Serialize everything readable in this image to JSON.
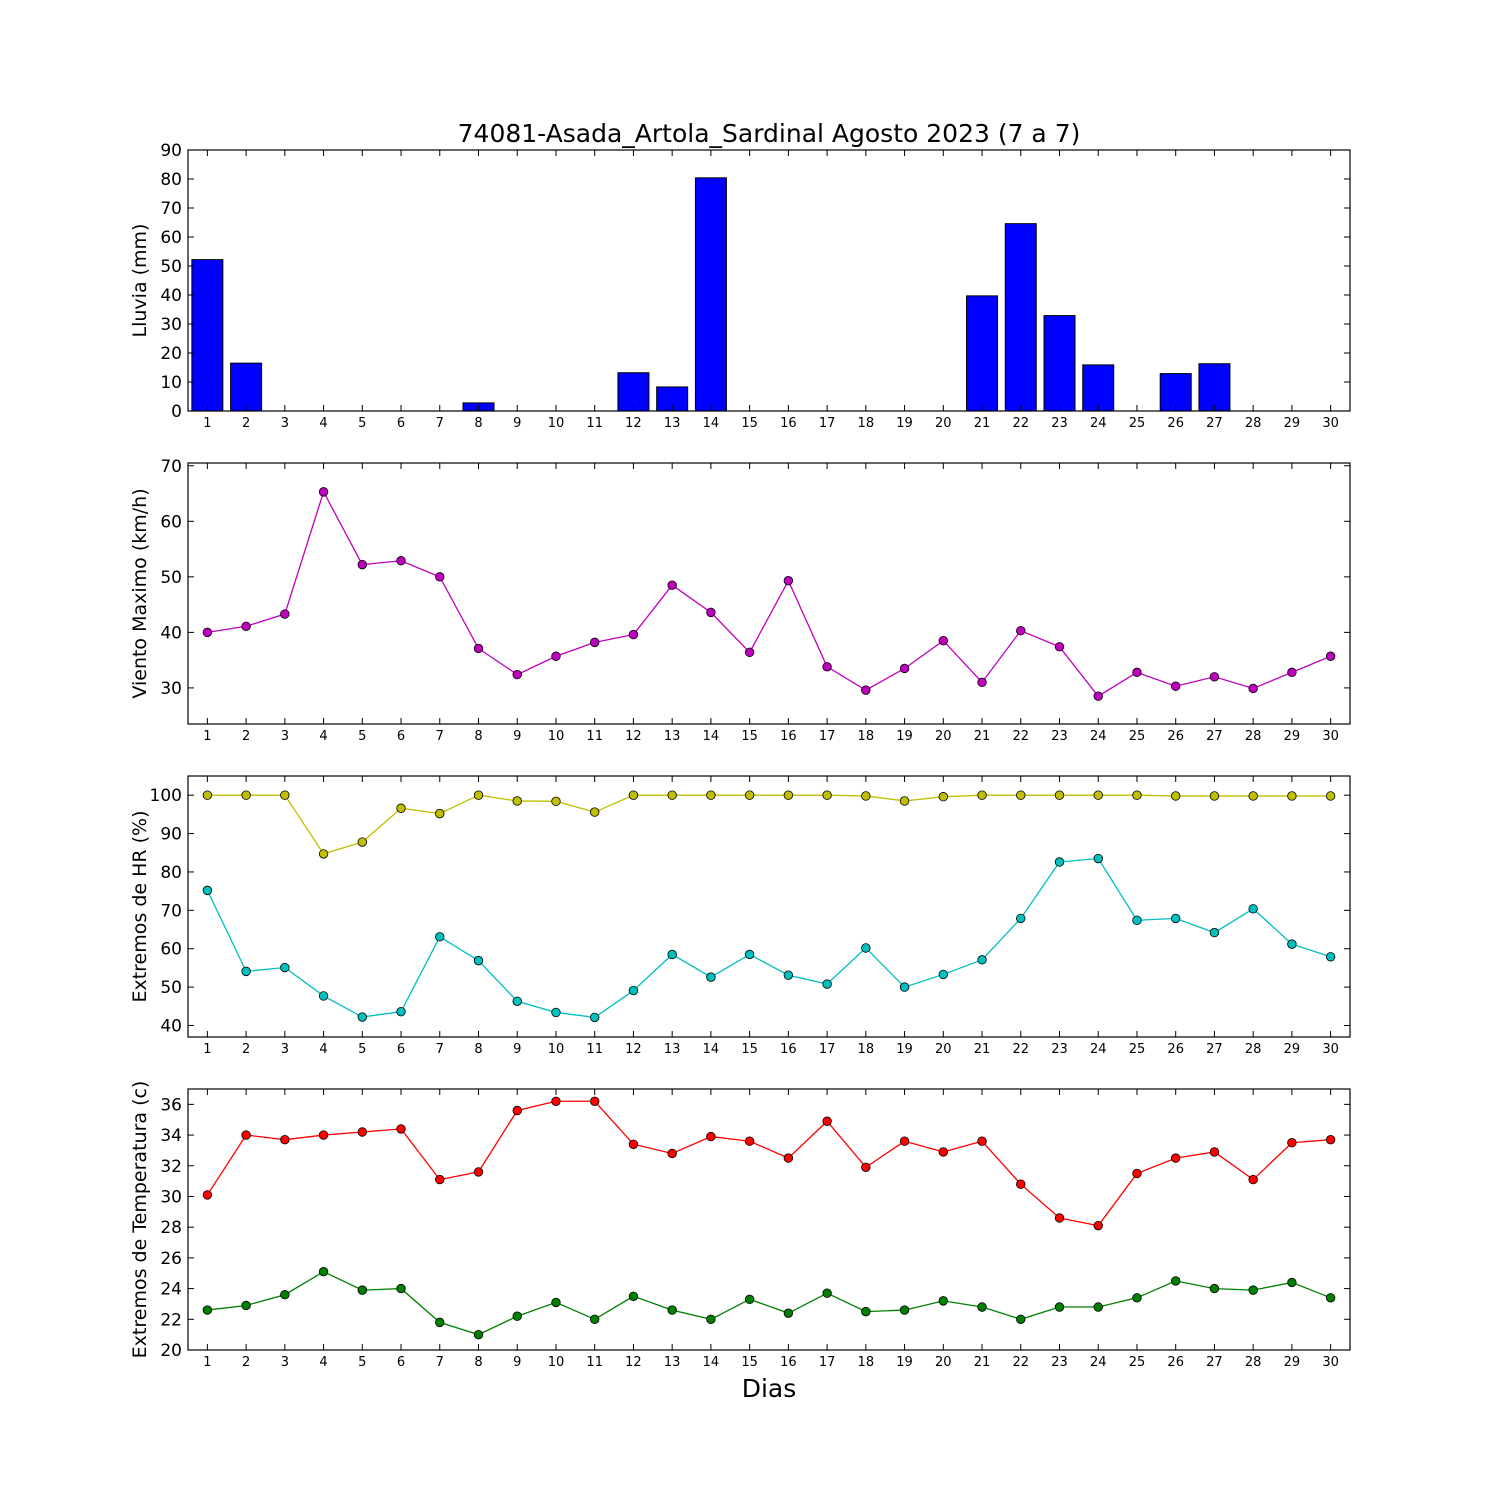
{
  "title": "74081-Asada_Artola_Sardinal Agosto 2023  (7 a 7)",
  "xlabel": "Dias",
  "chart_data": [
    {
      "id": "lluvia",
      "type": "bar",
      "title": "74081-Asada_Artola_Sardinal Agosto 2023  (7 a 7)",
      "ylabel": "Lluvia (mm)",
      "xlabel": "",
      "ylim": [
        0,
        90
      ],
      "yticks": [
        0,
        10,
        20,
        30,
        40,
        50,
        60,
        70,
        80,
        90
      ],
      "categories": [
        1,
        2,
        3,
        4,
        5,
        6,
        7,
        8,
        9,
        10,
        11,
        12,
        13,
        14,
        15,
        16,
        17,
        18,
        19,
        20,
        21,
        22,
        23,
        24,
        25,
        26,
        27,
        28,
        29,
        30
      ],
      "series": [
        {
          "color": "#0000ff",
          "values": [
            52.2,
            16.5,
            0,
            0,
            0,
            0,
            0,
            2.8,
            0,
            0,
            0,
            13.2,
            8.3,
            80.4,
            0,
            0,
            0,
            0,
            0,
            0,
            39.7,
            64.6,
            32.9,
            15.9,
            0,
            12.9,
            16.3,
            0,
            0,
            0
          ]
        }
      ]
    },
    {
      "id": "viento",
      "type": "line",
      "ylabel": "Viento Maximo (km/h)",
      "xlabel": "",
      "ylim": [
        23.5,
        70.5
      ],
      "yticks": [
        30,
        40,
        50,
        60,
        70
      ],
      "categories": [
        1,
        2,
        3,
        4,
        5,
        6,
        7,
        8,
        9,
        10,
        11,
        12,
        13,
        14,
        15,
        16,
        17,
        18,
        19,
        20,
        21,
        22,
        23,
        24,
        25,
        26,
        27,
        28,
        29,
        30
      ],
      "series": [
        {
          "color": "#bf00bf",
          "values": [
            40.0,
            41.1,
            43.3,
            65.3,
            52.2,
            52.9,
            50.0,
            37.1,
            32.4,
            35.7,
            38.2,
            39.6,
            48.5,
            43.6,
            36.4,
            49.3,
            33.8,
            29.6,
            33.5,
            38.5,
            31.0,
            40.3,
            37.4,
            28.5,
            32.8,
            30.3,
            32.0,
            29.9,
            32.8,
            35.7
          ]
        }
      ]
    },
    {
      "id": "humedad",
      "type": "line",
      "ylabel": "Extremos de HR (%)",
      "xlabel": "",
      "ylim": [
        37,
        105
      ],
      "yticks": [
        40,
        50,
        60,
        70,
        80,
        90,
        100
      ],
      "categories": [
        1,
        2,
        3,
        4,
        5,
        6,
        7,
        8,
        9,
        10,
        11,
        12,
        13,
        14,
        15,
        16,
        17,
        18,
        19,
        20,
        21,
        22,
        23,
        24,
        25,
        26,
        27,
        28,
        29,
        30
      ],
      "series": [
        {
          "color": "#bfbf00",
          "values": [
            100,
            100,
            100,
            84.7,
            87.8,
            96.6,
            95.2,
            100,
            98.5,
            98.4,
            95.6,
            100,
            100,
            100,
            100,
            100,
            100,
            99.8,
            98.5,
            99.6,
            100,
            100,
            100,
            100,
            100,
            99.8,
            99.8,
            99.8,
            99.8,
            99.8
          ]
        },
        {
          "color": "#00bfbf",
          "values": [
            75.2,
            54.1,
            55.1,
            47.7,
            42.2,
            43.6,
            63.1,
            56.9,
            46.3,
            43.4,
            42.1,
            49.1,
            58.5,
            52.6,
            58.5,
            53.1,
            50.8,
            60.2,
            50.0,
            53.3,
            57.1,
            67.9,
            82.6,
            83.5,
            67.4,
            67.9,
            64.2,
            70.4,
            61.2,
            57.9
          ]
        }
      ]
    },
    {
      "id": "temperatura",
      "type": "line",
      "ylabel": "Extremos de Temperatura (c)",
      "xlabel": "Dias",
      "ylim": [
        20,
        37
      ],
      "yticks": [
        20,
        22,
        24,
        26,
        28,
        30,
        32,
        34,
        36
      ],
      "categories": [
        1,
        2,
        3,
        4,
        5,
        6,
        7,
        8,
        9,
        10,
        11,
        12,
        13,
        14,
        15,
        16,
        17,
        18,
        19,
        20,
        21,
        22,
        23,
        24,
        25,
        26,
        27,
        28,
        29,
        30
      ],
      "series": [
        {
          "color": "#ff0000",
          "values": [
            30.1,
            34.0,
            33.7,
            34.0,
            34.2,
            34.4,
            31.1,
            31.6,
            35.6,
            36.2,
            36.2,
            33.4,
            32.8,
            33.9,
            33.6,
            32.5,
            34.9,
            31.9,
            33.6,
            32.9,
            33.6,
            30.8,
            28.6,
            28.1,
            31.5,
            32.5,
            32.9,
            31.1,
            33.5,
            33.7
          ]
        },
        {
          "color": "#008000",
          "values": [
            22.6,
            22.9,
            23.6,
            25.1,
            23.9,
            24.0,
            21.8,
            21.0,
            22.2,
            23.1,
            22.0,
            23.5,
            22.6,
            22.0,
            23.3,
            22.4,
            23.7,
            22.5,
            22.6,
            23.2,
            22.8,
            22.0,
            22.8,
            22.8,
            23.4,
            24.5,
            24.0,
            23.9,
            24.4,
            23.4
          ]
        }
      ]
    }
  ]
}
